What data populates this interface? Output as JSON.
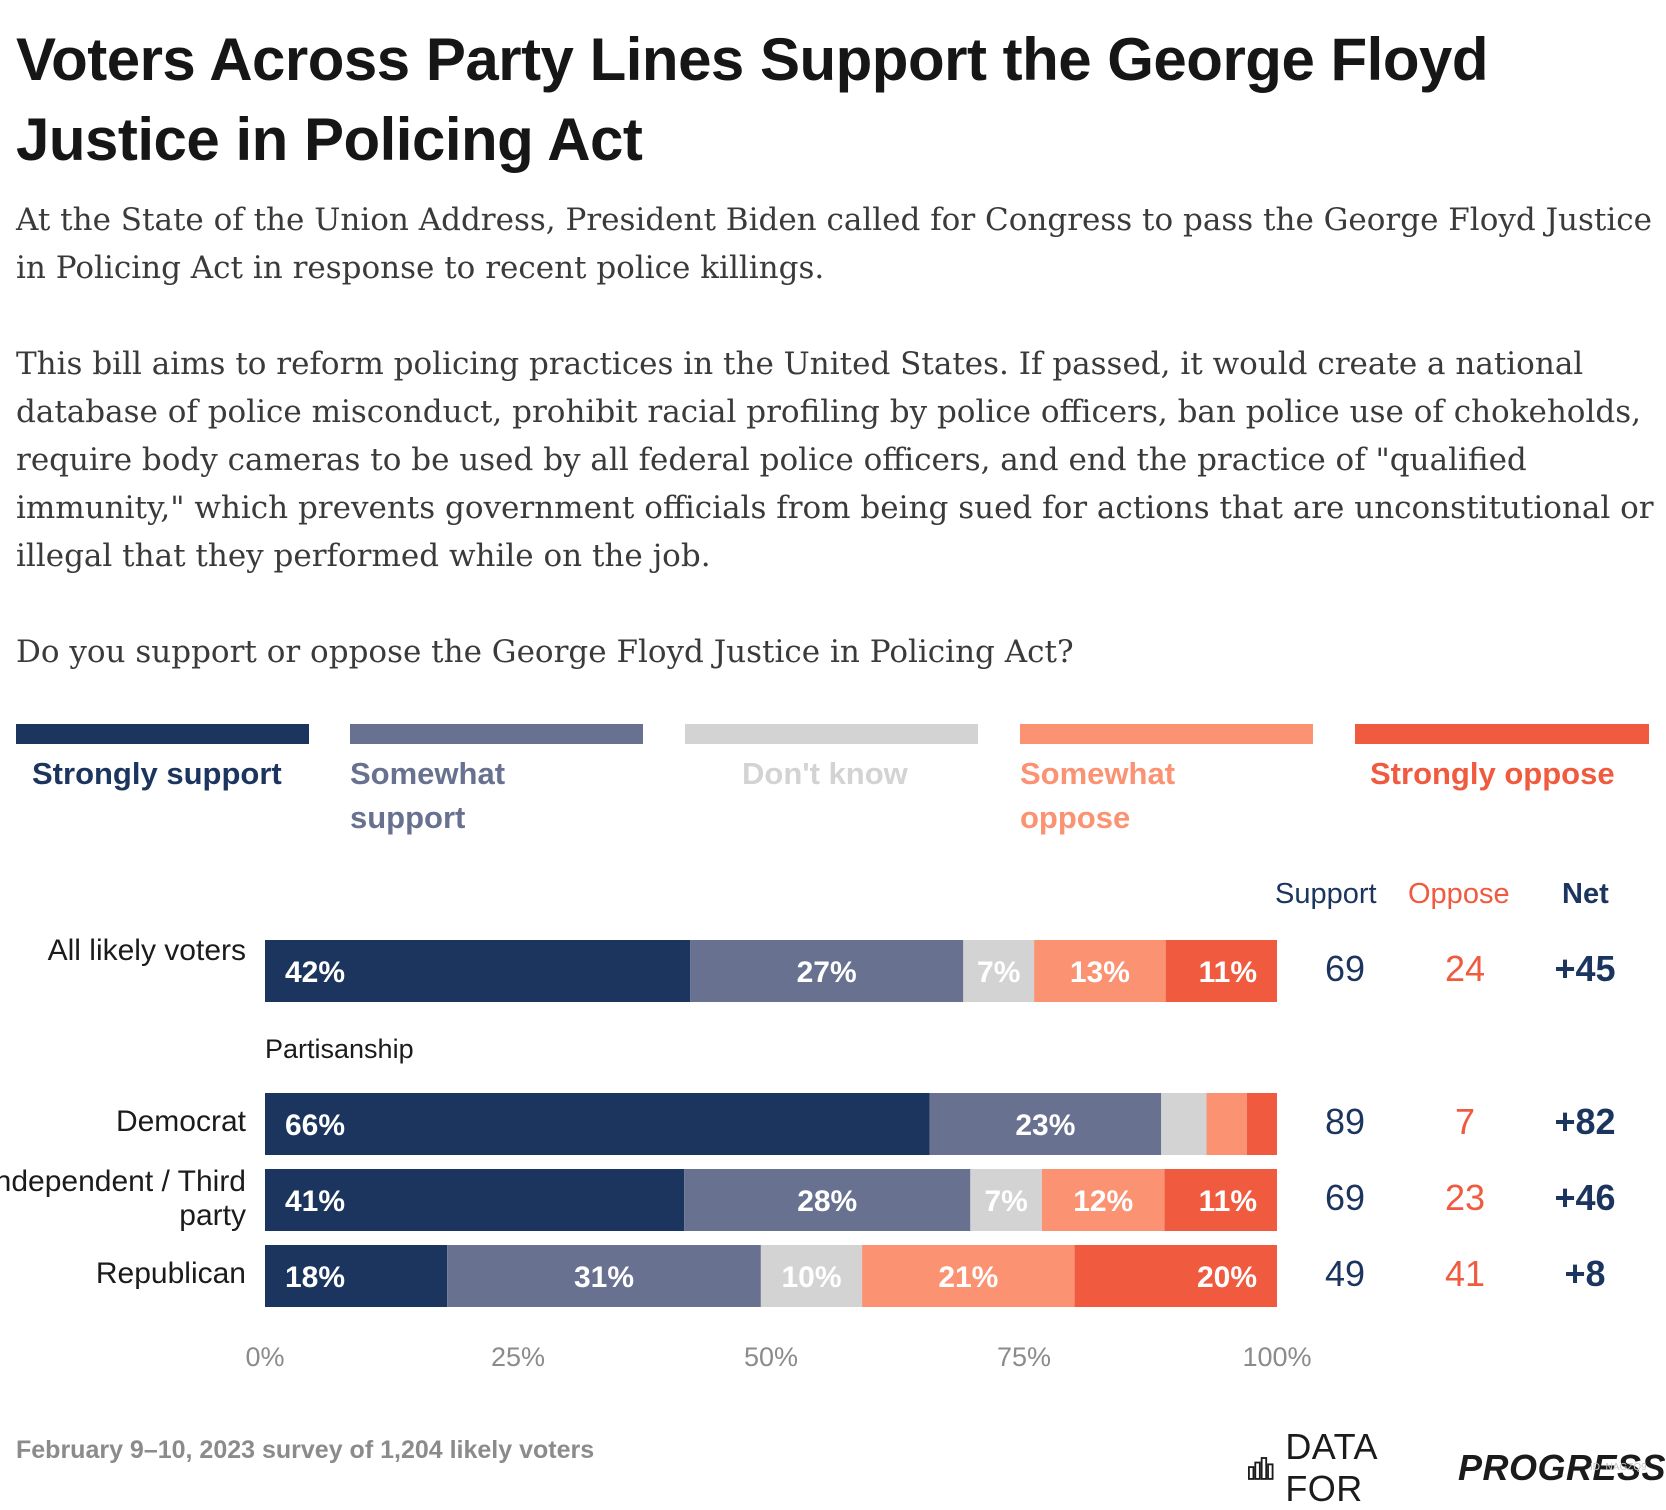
{
  "title": "Voters Across Party Lines Support the George Floyd Justice in Policing Act",
  "subtitle": {
    "p1": "At the State of the Union Address, President Biden called for Congress to pass the George Floyd Justice in Policing Act in response to recent police killings.",
    "p2": "This bill aims to reform policing practices in the United States. If passed, it would create a national database of police misconduct, prohibit racial profiling by police officers, ban police use of chokeholds, require body cameras to be used by all federal police officers, and end the practice of \"qualified immunity,\" which prevents government officials from being sued for actions that are unconstitutional or illegal that they performed while on the job.",
    "p3": "Do you support or oppose the George Floyd Justice in Policing Act?"
  },
  "legend": [
    {
      "label": "Strongly support",
      "color": "#1c355e",
      "text_color": "#1c355e"
    },
    {
      "label": "Somewhat support",
      "color": "#687190",
      "text_color": "#687190"
    },
    {
      "label": "Don't know",
      "color": "#d3d3d3",
      "text_color": "#d3d3d3"
    },
    {
      "label": "Somewhat oppose",
      "color": "#fb9272",
      "text_color": "#fb9272"
    },
    {
      "label": "Strongly oppose",
      "color": "#f05a3f",
      "text_color": "#f05a3f"
    }
  ],
  "columns": {
    "support": "Support",
    "oppose": "Oppose",
    "net": "Net"
  },
  "colors": {
    "support": "#1c355e",
    "oppose": "#f05a3f",
    "axis": "#8b8b8b"
  },
  "group_label": "Partisanship",
  "footer": {
    "note": "February 9–10, 2023 survey of 1,204 likely voters",
    "logo_plain": "DATA FOR",
    "logo_bold": "PROGRESS",
    "id": "ID: NAGZQ9"
  },
  "chart_data": {
    "type": "bar",
    "orientation": "horizontal",
    "stacked": true,
    "xlim": [
      0,
      100
    ],
    "x_ticks": [
      "0%",
      "25%",
      "50%",
      "75%",
      "100%"
    ],
    "series_names": [
      "Strongly support",
      "Somewhat support",
      "Don't know",
      "Somewhat oppose",
      "Strongly oppose"
    ],
    "rows": [
      {
        "label": "All likely voters",
        "values": [
          42,
          27,
          7,
          13,
          11
        ],
        "labels": [
          "42%",
          "27%",
          "7%",
          "13%",
          "11%"
        ],
        "support": "69",
        "oppose": "24",
        "net": "+45"
      },
      {
        "label": "Democrat",
        "values": [
          66,
          23,
          4.5,
          4,
          3
        ],
        "labels": [
          "66%",
          "23%",
          "",
          "",
          ""
        ],
        "support": "89",
        "oppose": "7",
        "net": "+82"
      },
      {
        "label": "Independent / Third party",
        "values": [
          41,
          28,
          7,
          12,
          11
        ],
        "labels": [
          "41%",
          "28%",
          "7%",
          "12%",
          "11%"
        ],
        "support": "69",
        "oppose": "23",
        "net": "+46"
      },
      {
        "label": "Republican",
        "values": [
          18,
          31,
          10,
          21,
          20
        ],
        "labels": [
          "18%",
          "31%",
          "10%",
          "21%",
          "20%"
        ],
        "support": "49",
        "oppose": "41",
        "net": "+8"
      }
    ]
  }
}
